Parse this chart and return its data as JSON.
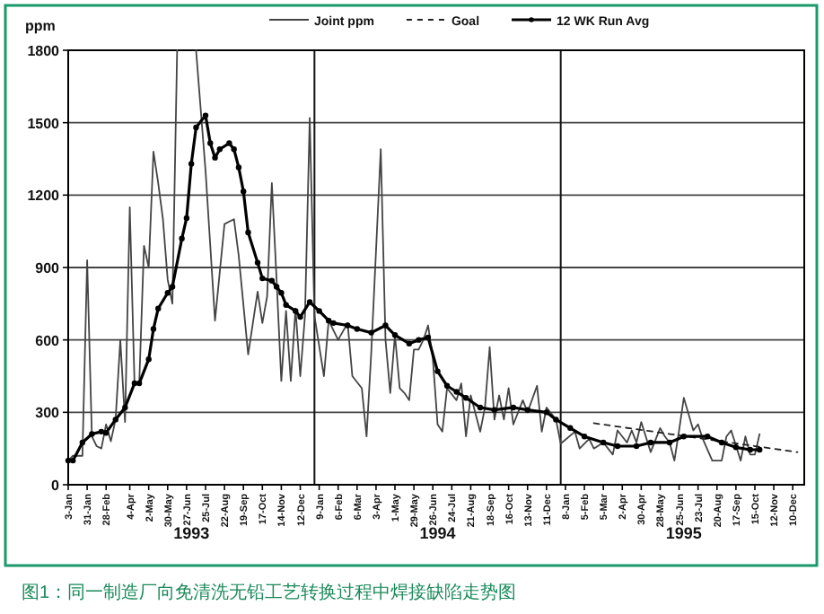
{
  "chart_data": {
    "type": "line",
    "ylabel": "ppm",
    "legend": "top",
    "grid": "y",
    "xlim": [
      "1993-01-03",
      "1995-12-27"
    ],
    "ylim": [
      0,
      1800
    ],
    "yticks": [
      0,
      300,
      600,
      900,
      1200,
      1500,
      1800
    ],
    "xticks": [
      {
        "value": "1993-01-03",
        "label": "3-Jan"
      },
      {
        "value": "1993-01-31",
        "label": "31-Jan"
      },
      {
        "value": "1993-02-28",
        "label": "28-Feb"
      },
      {
        "value": "1993-04-04",
        "label": "4-Apr"
      },
      {
        "value": "1993-05-02",
        "label": "2-May"
      },
      {
        "value": "1993-05-30",
        "label": "30-May"
      },
      {
        "value": "1993-06-27",
        "label": "27-Jun"
      },
      {
        "value": "1993-07-25",
        "label": "25-Jul"
      },
      {
        "value": "1993-08-22",
        "label": "22-Aug"
      },
      {
        "value": "1993-09-19",
        "label": "19-Sep"
      },
      {
        "value": "1993-10-17",
        "label": "17-Oct"
      },
      {
        "value": "1993-11-14",
        "label": "14-Nov"
      },
      {
        "value": "1993-12-12",
        "label": "12-Dec"
      },
      {
        "value": "1994-01-09",
        "label": "9-Jan"
      },
      {
        "value": "1994-02-06",
        "label": "6-Feb"
      },
      {
        "value": "1994-03-06",
        "label": "6-Mar"
      },
      {
        "value": "1994-04-03",
        "label": "3-Apr"
      },
      {
        "value": "1994-05-01",
        "label": "1-May"
      },
      {
        "value": "1994-05-29",
        "label": "29-May"
      },
      {
        "value": "1994-06-26",
        "label": "26-Jun"
      },
      {
        "value": "1994-07-24",
        "label": "24-Jul"
      },
      {
        "value": "1994-08-21",
        "label": "21-Aug"
      },
      {
        "value": "1994-09-18",
        "label": "18-Sep"
      },
      {
        "value": "1994-10-16",
        "label": "16-Oct"
      },
      {
        "value": "1994-11-13",
        "label": "13-Nov"
      },
      {
        "value": "1994-12-11",
        "label": "11-Dec"
      },
      {
        "value": "1995-01-08",
        "label": "8-Jan"
      },
      {
        "value": "1995-02-05",
        "label": "5-Feb"
      },
      {
        "value": "1995-03-05",
        "label": "5-Mar"
      },
      {
        "value": "1995-04-02",
        "label": "2-Apr"
      },
      {
        "value": "1995-04-30",
        "label": "30-Apr"
      },
      {
        "value": "1995-05-28",
        "label": "28-May"
      },
      {
        "value": "1995-06-25",
        "label": "25-Jun"
      },
      {
        "value": "1995-07-23",
        "label": "23-Jul"
      },
      {
        "value": "1995-08-20",
        "label": "20-Aug"
      },
      {
        "value": "1995-09-17",
        "label": "17-Sep"
      },
      {
        "value": "1995-10-15",
        "label": "15-Oct"
      },
      {
        "value": "1995-11-12",
        "label": "12-Nov"
      },
      {
        "value": "1995-12-10",
        "label": "10-Dec"
      }
    ],
    "x2lim": [
      "1993-01-03",
      "1995-12-27"
    ],
    "x2ticks": [
      {
        "value": "1993-07-04",
        "label": "1993"
      },
      {
        "value": "1994-07-03",
        "label": "1994"
      },
      {
        "value": "1995-07-02",
        "label": "1995"
      }
    ],
    "ref_lines": [
      {
        "axis": "x",
        "value": "1994-01-02",
        "color": "#111111"
      },
      {
        "axis": "x",
        "value": "1995-01-01",
        "color": "#111111"
      }
    ],
    "annotations": [
      "图1：同一制造厂向免清洗无铅工艺转换过程中焊接缺陷走势图"
    ],
    "series": [
      {
        "name": "Joint ppm",
        "color": "#444444",
        "line_style": "solid",
        "marker": "none",
        "x": [
          "1993-01-03",
          "1993-01-10",
          "1993-01-24",
          "1993-01-31",
          "1993-02-07",
          "1993-02-14",
          "1993-02-21",
          "1993-02-28",
          "1993-03-07",
          "1993-03-14",
          "1993-03-21",
          "1993-03-28",
          "1993-04-04",
          "1993-04-11",
          "1993-04-18",
          "1993-04-25",
          "1993-05-02",
          "1993-05-09",
          "1993-05-16",
          "1993-05-23",
          "1993-05-30",
          "1993-06-06",
          "1993-06-13",
          "1993-06-20",
          "1993-07-11",
          "1993-07-25",
          "1993-08-08",
          "1993-08-22",
          "1993-09-05",
          "1993-09-12",
          "1993-09-26",
          "1993-10-10",
          "1993-10-17",
          "1993-10-24",
          "1993-10-31",
          "1993-11-07",
          "1993-11-14",
          "1993-11-21",
          "1993-11-28",
          "1993-12-05",
          "1993-12-12",
          "1993-12-19",
          "1993-12-26",
          "1994-01-02",
          "1994-01-16",
          "1994-01-23",
          "1994-02-06",
          "1994-02-20",
          "1994-02-27",
          "1994-03-13",
          "1994-03-20",
          "1994-03-27",
          "1994-04-10",
          "1994-04-17",
          "1994-04-24",
          "1994-05-01",
          "1994-05-08",
          "1994-05-15",
          "1994-05-22",
          "1994-05-29",
          "1994-06-05",
          "1994-06-12",
          "1994-06-19",
          "1994-06-26",
          "1994-07-03",
          "1994-07-10",
          "1994-07-17",
          "1994-07-31",
          "1994-08-07",
          "1994-08-14",
          "1994-08-21",
          "1994-09-04",
          "1994-09-11",
          "1994-09-18",
          "1994-09-25",
          "1994-10-02",
          "1994-10-09",
          "1994-10-16",
          "1994-10-23",
          "1994-11-06",
          "1994-11-13",
          "1994-11-27",
          "1994-12-04",
          "1994-12-11",
          "1994-12-25",
          "1995-01-01",
          "1995-01-22",
          "1995-01-29",
          "1995-02-12",
          "1995-02-19",
          "1995-03-05",
          "1995-03-19",
          "1995-03-26",
          "1995-04-09",
          "1995-04-16",
          "1995-04-23",
          "1995-04-30",
          "1995-05-14",
          "1995-05-28",
          "1995-06-04",
          "1995-06-11",
          "1995-06-18",
          "1995-06-25",
          "1995-07-02",
          "1995-07-16",
          "1995-07-23",
          "1995-07-30",
          "1995-08-13",
          "1995-08-27",
          "1995-09-03",
          "1995-09-10",
          "1995-09-24",
          "1995-10-01",
          "1995-10-08",
          "1995-10-15",
          "1995-10-22"
        ],
        "values": [
          100,
          120,
          120,
          930,
          200,
          160,
          150,
          250,
          180,
          270,
          600,
          260,
          1150,
          420,
          420,
          990,
          900,
          1380,
          1250,
          1100,
          850,
          750,
          1800,
          null,
          1800,
          1300,
          680,
          1080,
          1100,
          950,
          540,
          800,
          670,
          780,
          1250,
          850,
          430,
          720,
          430,
          730,
          450,
          700,
          1520,
          700,
          450,
          680,
          600,
          670,
          450,
          400,
          200,
          550,
          1390,
          600,
          380,
          620,
          400,
          380,
          350,
          560,
          560,
          600,
          660,
          520,
          250,
          220,
          400,
          350,
          420,
          200,
          370,
          220,
          320,
          570,
          270,
          370,
          270,
          400,
          250,
          350,
          300,
          410,
          220,
          320,
          270,
          170,
          220,
          150,
          190,
          150,
          175,
          125,
          225,
          175,
          225,
          175,
          260,
          135,
          235,
          200,
          175,
          100,
          225,
          360,
          225,
          250,
          190,
          100,
          100,
          200,
          225,
          100,
          200,
          125,
          125,
          210
        ]
      },
      {
        "name": "Goal",
        "color": "#222222",
        "line_style": "dashed",
        "marker": "none",
        "x": [
          "1995-02-19",
          "1995-12-17"
        ],
        "values": [
          255,
          135
        ]
      },
      {
        "name": "12 WK Run Avg",
        "color": "#000000",
        "line_style": "solid",
        "marker": "circle",
        "x": [
          "1993-01-03",
          "1993-01-10",
          "1993-01-24",
          "1993-02-07",
          "1993-02-21",
          "1993-02-28",
          "1993-03-14",
          "1993-03-28",
          "1993-04-11",
          "1993-04-18",
          "1993-05-02",
          "1993-05-09",
          "1993-05-16",
          "1993-05-30",
          "1993-06-06",
          "1993-06-20",
          "1993-06-27",
          "1993-07-04",
          "1993-07-11",
          "1993-07-25",
          "1993-08-01",
          "1993-08-08",
          "1993-08-15",
          "1993-08-29",
          "1993-09-05",
          "1993-09-12",
          "1993-09-19",
          "1993-09-26",
          "1993-10-10",
          "1993-10-17",
          "1993-10-31",
          "1993-11-07",
          "1993-11-14",
          "1993-11-21",
          "1993-12-05",
          "1993-12-12",
          "1993-12-26",
          "1994-01-09",
          "1994-01-23",
          "1994-01-30",
          "1994-02-20",
          "1994-03-06",
          "1994-03-27",
          "1994-04-17",
          "1994-05-01",
          "1994-05-22",
          "1994-06-05",
          "1994-06-19",
          "1994-07-03",
          "1994-07-17",
          "1994-07-31",
          "1994-08-14",
          "1994-09-04",
          "1994-09-25",
          "1994-10-23",
          "1994-11-13",
          "1994-12-11",
          "1994-12-25",
          "1995-01-15",
          "1995-02-05",
          "1995-03-05",
          "1995-03-26",
          "1995-04-23",
          "1995-05-14",
          "1995-06-11",
          "1995-07-02",
          "1995-08-06",
          "1995-08-27",
          "1995-09-17",
          "1995-10-08",
          "1995-10-22"
        ],
        "values": [
          100,
          100,
          175,
          210,
          220,
          215,
          270,
          320,
          420,
          420,
          520,
          645,
          730,
          795,
          820,
          1020,
          1105,
          1330,
          1480,
          1530,
          1415,
          1355,
          1390,
          1415,
          1390,
          1315,
          1215,
          1045,
          920,
          855,
          845,
          820,
          795,
          745,
          720,
          695,
          757,
          720,
          680,
          670,
          660,
          645,
          630,
          660,
          620,
          585,
          600,
          610,
          470,
          410,
          385,
          360,
          320,
          310,
          320,
          310,
          300,
          270,
          235,
          200,
          175,
          160,
          160,
          175,
          175,
          200,
          200,
          175,
          155,
          145,
          145
        ]
      }
    ]
  }
}
